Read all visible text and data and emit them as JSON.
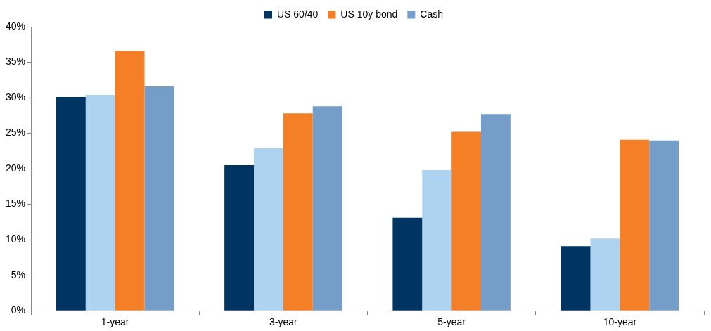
{
  "chart_data": {
    "type": "bar",
    "categories": [
      "1-year",
      "3-year",
      "5-year",
      "10-year"
    ],
    "series": [
      {
        "name": "US 60/40",
        "color": "#003462",
        "values": [
          30.1,
          20.5,
          13.1,
          9.1
        ]
      },
      {
        "color": "#aed3f0",
        "values": [
          30.4,
          22.9,
          19.8,
          10.2
        ]
      },
      {
        "name": "US 10y bond",
        "color": "#f47f26",
        "values": [
          36.6,
          27.8,
          25.2,
          24.1
        ]
      },
      {
        "name": "Cash",
        "color": "#759dc9",
        "values": [
          31.6,
          28.8,
          27.7,
          24.0
        ]
      }
    ],
    "ylim": [
      0,
      40
    ],
    "yticks": [
      {
        "value": 0,
        "label": "0%"
      },
      {
        "value": 5,
        "label": "5%"
      },
      {
        "value": 10,
        "label": "10%"
      },
      {
        "value": 15,
        "label": "15%"
      },
      {
        "value": 20,
        "label": "20%"
      },
      {
        "value": 25,
        "label": "25%"
      },
      {
        "value": 30,
        "label": "30%"
      },
      {
        "value": 35,
        "label": "35%"
      },
      {
        "value": 40,
        "label": "40%"
      }
    ],
    "grid": false,
    "legend": "top"
  }
}
